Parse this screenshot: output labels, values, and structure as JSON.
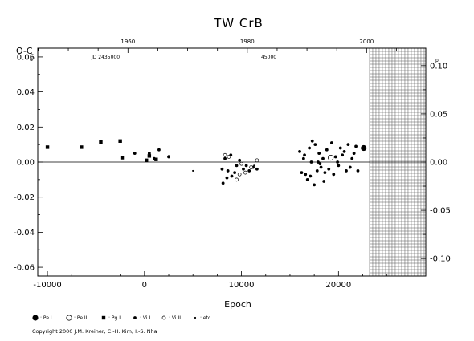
{
  "chart_data": {
    "type": "scatter",
    "title": "TW  CrB",
    "xlabel": "Epoch",
    "ylabel": "O-C",
    "ylabel_unit": "d",
    "right_unit": "p",
    "xlim": [
      -11000,
      29000
    ],
    "ylim": [
      -0.065,
      0.065
    ],
    "x_ticks": [
      "-10000",
      "0",
      "10000",
      "20000"
    ],
    "y_ticks": [
      "-0.06",
      "-0.04",
      "-0.02",
      "0.00",
      "0.02",
      "0.04",
      "0.06"
    ],
    "top_axis": {
      "ticks": [
        "1960",
        "1980",
        "2000"
      ],
      "jd_label": "JD 2435000",
      "jd_second": "45000"
    },
    "right_axis": {
      "ticks": [
        "0.10",
        "0.05",
        "0.00",
        "-0.05",
        "-0.10"
      ]
    },
    "legend": [
      {
        "symbol": "big-dot",
        "label": ": Pe I"
      },
      {
        "symbol": "big-circle",
        "label": ": Pe II"
      },
      {
        "symbol": "square",
        "label": ": Pg I"
      },
      {
        "symbol": "dot",
        "label": ": Vi I"
      },
      {
        "symbol": "circle",
        "label": ": Vi II"
      },
      {
        "symbol": "small-dot",
        "label": ": etc."
      }
    ],
    "copyright": "Copyright 2000 J.M. Kreiner, C.-H. Kim, I.-S. Nha",
    "series": [
      {
        "marker": "square",
        "x": [
          -10000,
          -6500,
          -4500,
          -2500,
          -2300,
          200,
          500,
          1200
        ],
        "y": [
          0.0085,
          0.0085,
          0.0115,
          0.012,
          0.0025,
          0.001,
          0.0035,
          0.0015
        ]
      },
      {
        "marker": "dot",
        "x": [
          -1000,
          500,
          1000,
          1500,
          2500,
          8000,
          8300,
          8600,
          8900,
          9300,
          9500,
          9800,
          10200,
          10500,
          10800,
          11200,
          11600,
          8100,
          8500,
          9000,
          16000,
          16500,
          17000,
          17300,
          17600,
          18000,
          18400,
          18800,
          19300,
          19700,
          20200,
          20600,
          21000,
          21400,
          21800,
          16200,
          17100,
          17800,
          18200,
          19000,
          20000,
          20800,
          16800,
          17500,
          18600,
          19500,
          21200,
          16400,
          17200,
          18100,
          19900,
          21600,
          22000,
          17900,
          20400,
          16600,
          18500
        ],
        "y": [
          0.005,
          0.005,
          0.002,
          0.007,
          0.003,
          -0.004,
          0.002,
          -0.005,
          0.004,
          -0.006,
          -0.002,
          0.001,
          -0.004,
          -0.002,
          -0.005,
          -0.003,
          -0.004,
          -0.012,
          -0.009,
          -0.008,
          0.006,
          0.004,
          0.008,
          0.012,
          0.01,
          0.005,
          0.002,
          0.007,
          0.011,
          0.003,
          0.008,
          0.006,
          0.01,
          0.002,
          0.009,
          -0.006,
          -0.008,
          -0.005,
          -0.003,
          -0.004,
          -0.002,
          -0.005,
          -0.01,
          -0.013,
          -0.006,
          -0.007,
          -0.003,
          0.002,
          0.0,
          -0.001,
          0.0,
          0.005,
          -0.005,
          0.0,
          0.004,
          -0.007,
          -0.011
        ]
      },
      {
        "marker": "small-dot",
        "x": [
          2500,
          5000,
          11300
        ],
        "y": [
          0.0035,
          -0.005,
          -0.002
        ]
      },
      {
        "marker": "circle",
        "x": [
          8300,
          8700,
          9500,
          10000,
          10400,
          11000,
          11600,
          9800
        ],
        "y": [
          0.004,
          0.003,
          -0.01,
          -0.001,
          -0.006,
          -0.003,
          0.001,
          -0.007
        ]
      },
      {
        "marker": "big-circle",
        "x": [
          19200
        ],
        "y": [
          0.0025
        ]
      },
      {
        "marker": "big-dot",
        "x": [
          22600
        ],
        "y": [
          0.008
        ]
      }
    ]
  }
}
